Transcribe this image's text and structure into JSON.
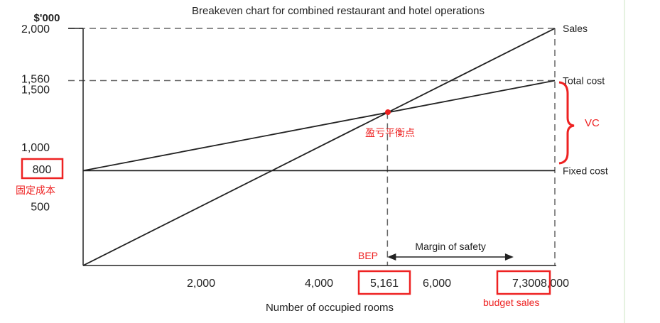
{
  "chart_data": {
    "type": "line",
    "title": "Breakeven chart for combined restaurant and hotel operations",
    "ylabel": "$'000",
    "xlabel": "Number of occupied rooms",
    "xlim": [
      0,
      8000
    ],
    "ylim": [
      0,
      2000
    ],
    "x_ticks": [
      {
        "value": 2000,
        "label": "2,000"
      },
      {
        "value": 4000,
        "label": "4,000"
      },
      {
        "value": 6000,
        "label": "6,000"
      },
      {
        "value": 8000,
        "label": "8,000"
      }
    ],
    "y_ticks": [
      {
        "value": 500,
        "label": "500"
      },
      {
        "value": 1000,
        "label": "1,000"
      },
      {
        "value": 1500,
        "label": "1,500"
      },
      {
        "value": 1560,
        "label": "1,560"
      },
      {
        "value": 2000,
        "label": "2,000"
      }
    ],
    "series": [
      {
        "name": "Sales",
        "x": [
          0,
          8000
        ],
        "y": [
          0,
          2000
        ]
      },
      {
        "name": "Total cost",
        "x": [
          0,
          8000
        ],
        "y": [
          800,
          1560
        ]
      },
      {
        "name": "Fixed cost",
        "x": [
          0,
          8000
        ],
        "y": [
          800,
          800
        ]
      }
    ],
    "reference_lines": [
      {
        "axis": "y",
        "value": 2000,
        "style": "dashed"
      },
      {
        "axis": "y",
        "value": 1560,
        "style": "dashed"
      },
      {
        "axis": "x",
        "value": 5161,
        "style": "dashed"
      },
      {
        "axis": "x",
        "value": 8000,
        "style": "dashed"
      }
    ],
    "margin_of_safety": {
      "label": "Margin of safety",
      "from": 5161,
      "to": 7300
    },
    "annotations": {
      "fixed_cost_value": "800",
      "fixed_cost_cn": "固定成本",
      "breakeven_cn": "盈亏平衡点",
      "vc": "VC",
      "bep": "BEP",
      "bep_value": "5,161",
      "budget_value": "7,300",
      "budget_label": "budget sales"
    },
    "annotation_color": "#ee2222",
    "line_color": "#222222"
  }
}
